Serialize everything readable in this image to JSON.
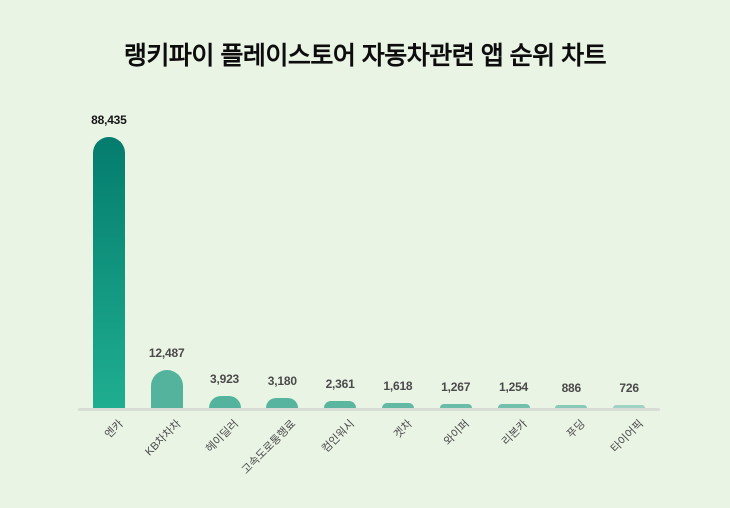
{
  "title": "랭키파이 플레이스토어 자동차관련 앱 순위 차트",
  "chart_data": {
    "type": "bar",
    "title": "랭키파이 플레이스토어 자동차관련 앱 순위 차트",
    "categories": [
      "엔카",
      "KB차차차",
      "헤이딜러",
      "고속도로통행료",
      "컴인워시",
      "겟차",
      "와이퍼",
      "리본카",
      "푸딩",
      "타이어픽"
    ],
    "values": [
      88435,
      12487,
      3923,
      3180,
      2361,
      1618,
      1267,
      1254,
      886,
      726
    ],
    "value_labels": [
      "88,435",
      "12,487",
      "3,923",
      "3,180",
      "2,361",
      "1,618",
      "1,267",
      "1,254",
      "886",
      "726"
    ],
    "xlabel": "",
    "ylabel": "",
    "ylim": [
      0,
      88435
    ],
    "grid": false,
    "legend": false,
    "bar_orientation": "vertical",
    "colors": {
      "background": "#eaf4e5",
      "first_bar_gradient_top": "#047c6e",
      "first_bar_gradient_bottom": "#1fae90",
      "bar_colors": [
        "#1fae90",
        "#54b39c",
        "#54b39c",
        "#57b49e",
        "#5bb6a0",
        "#62b9a4",
        "#69bda8",
        "#70c0ac",
        "#87cab8",
        "#9fd3c4"
      ],
      "axis_line": "#d8ddd5",
      "title_text": "#0d0d0d",
      "first_value_label": "#161616",
      "value_label": "#4a4a4a",
      "category_label": "#4a4a4a"
    }
  }
}
